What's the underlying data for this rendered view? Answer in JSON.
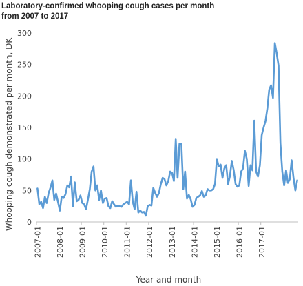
{
  "chart_data": {
    "type": "line",
    "title_lines": [
      "Laboratory-confirmed whooping cough cases per month",
      "from 2007 to 2017"
    ],
    "xlabel": "Year and month",
    "ylabel": "Whooping cough demonstrated per month, DK",
    "ylim": [
      0,
      300
    ],
    "yticks": [
      0,
      50,
      100,
      150,
      200,
      250,
      300
    ],
    "xticks": [
      "2007-01",
      "2008-01",
      "2009-01",
      "2010-01",
      "2011-01",
      "2012-01",
      "2013-01",
      "2014-01",
      "2015-01",
      "2016-01",
      "2017-01"
    ],
    "grid": false,
    "line_color": "#5b9bd5",
    "series": [
      {
        "start": "2007-01",
        "values": [
          53,
          28,
          32,
          22,
          40,
          30,
          46,
          55,
          66,
          35,
          45,
          32,
          18,
          40,
          38,
          44,
          58,
          55,
          72,
          25,
          63,
          33,
          35,
          42,
          30,
          28,
          20,
          35,
          52,
          80,
          88,
          50,
          58,
          35,
          50,
          30,
          37,
          38,
          25,
          22,
          33,
          28,
          24,
          26,
          25,
          24,
          28,
          30,
          32,
          28,
          66,
          32,
          20,
          48,
          15,
          18,
          15,
          16,
          10,
          25,
          27,
          26,
          54,
          46,
          40,
          46,
          60,
          70,
          68,
          58,
          65,
          80,
          78,
          65,
          132,
          70,
          124,
          124,
          52,
          80,
          37,
          43,
          36,
          24,
          27,
          38,
          40,
          42,
          49,
          40,
          42,
          52,
          50,
          50,
          52,
          60,
          100,
          88,
          91,
          70,
          85,
          90,
          60,
          73,
          97,
          82,
          60,
          56,
          58,
          80,
          85,
          113,
          100,
          57,
          90,
          82,
          161,
          80,
          72,
          90,
          138,
          150,
          160,
          180,
          210,
          217,
          197,
          284,
          268,
          248,
          125,
          80,
          58,
          82,
          62,
          68,
          98,
          70,
          50,
          66
        ]
      }
    ]
  }
}
